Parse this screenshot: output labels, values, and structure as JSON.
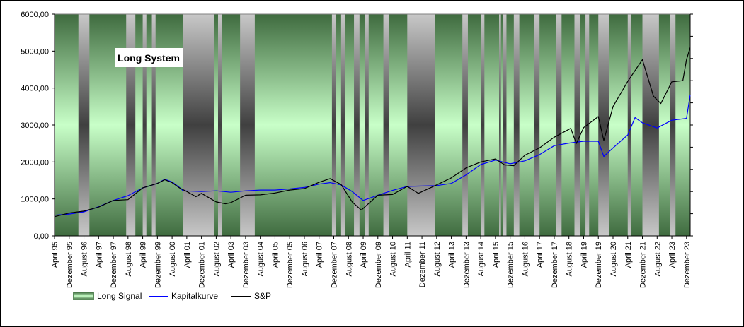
{
  "chart_data": {
    "type": "line",
    "title": "Long System",
    "xlabel": "",
    "ylabel": "",
    "ylim": [
      0,
      6000
    ],
    "y_ticks": [
      "0,00",
      "1000,00",
      "2000,00",
      "3000,00",
      "4000,00",
      "5000,00",
      "6000,00"
    ],
    "x_range": [
      "1995-04",
      "2024-02"
    ],
    "x_ticks": [
      {
        "date": "1995-04",
        "label": "April 95"
      },
      {
        "date": "1995-12",
        "label": "Dezember 95"
      },
      {
        "date": "1996-08",
        "label": "August 96"
      },
      {
        "date": "1997-04",
        "label": "April 97"
      },
      {
        "date": "1997-12",
        "label": "Dezember 97"
      },
      {
        "date": "1998-08",
        "label": "August 98"
      },
      {
        "date": "1999-04",
        "label": "April 99"
      },
      {
        "date": "1999-12",
        "label": "Dezember 99"
      },
      {
        "date": "2000-08",
        "label": "August 00"
      },
      {
        "date": "2001-04",
        "label": "April 01"
      },
      {
        "date": "2001-12",
        "label": "Dezember 01"
      },
      {
        "date": "2002-08",
        "label": "August 02"
      },
      {
        "date": "2003-04",
        "label": "April 03"
      },
      {
        "date": "2003-12",
        "label": "Dezember 03"
      },
      {
        "date": "2004-08",
        "label": "August 04"
      },
      {
        "date": "2005-04",
        "label": "April 05"
      },
      {
        "date": "2005-12",
        "label": "Dezember 05"
      },
      {
        "date": "2006-08",
        "label": "August 06"
      },
      {
        "date": "2007-04",
        "label": "April 07"
      },
      {
        "date": "2007-12",
        "label": "Dezember 07"
      },
      {
        "date": "2008-08",
        "label": "August 08"
      },
      {
        "date": "2009-04",
        "label": "April 09"
      },
      {
        "date": "2009-12",
        "label": "Dezember 09"
      },
      {
        "date": "2010-08",
        "label": "August 10"
      },
      {
        "date": "2011-04",
        "label": "April 11"
      },
      {
        "date": "2011-12",
        "label": "Dezember 11"
      },
      {
        "date": "2012-08",
        "label": "August 12"
      },
      {
        "date": "2013-04",
        "label": "April 13"
      },
      {
        "date": "2013-12",
        "label": "Dezember 13"
      },
      {
        "date": "2014-08",
        "label": "August 14"
      },
      {
        "date": "2015-04",
        "label": "April 15"
      },
      {
        "date": "2015-12",
        "label": "Dezember 15"
      },
      {
        "date": "2016-08",
        "label": "August 16"
      },
      {
        "date": "2017-04",
        "label": "April 17"
      },
      {
        "date": "2017-12",
        "label": "Dezember 17"
      },
      {
        "date": "2018-08",
        "label": "August 18"
      },
      {
        "date": "2019-04",
        "label": "April 19"
      },
      {
        "date": "2019-12",
        "label": "Dezember 19"
      },
      {
        "date": "2020-08",
        "label": "August 20"
      },
      {
        "date": "2021-04",
        "label": "April 21"
      },
      {
        "date": "2021-12",
        "label": "Dezember 21"
      },
      {
        "date": "2022-08",
        "label": "August 22"
      },
      {
        "date": "2023-04",
        "label": "April 23"
      },
      {
        "date": "2023-12",
        "label": "Dezember 23"
      }
    ],
    "legend_position": "bottom-left",
    "grid": false,
    "long_signal_periods": [
      [
        "1995-04",
        "1996-05"
      ],
      [
        "1996-11",
        "1998-07"
      ],
      [
        "1998-12",
        "1999-04"
      ],
      [
        "1999-06",
        "1999-09"
      ],
      [
        "1999-11",
        "2001-02"
      ],
      [
        "2002-07",
        "2002-09"
      ],
      [
        "2002-11",
        "2003-09"
      ],
      [
        "2004-05",
        "2007-11"
      ],
      [
        "2008-01",
        "2008-04"
      ],
      [
        "2008-06",
        "2008-11"
      ],
      [
        "2009-02",
        "2009-05"
      ],
      [
        "2009-07",
        "2010-03"
      ],
      [
        "2010-06",
        "2011-04"
      ],
      [
        "2012-07",
        "2013-10"
      ],
      [
        "2014-01",
        "2014-08"
      ],
      [
        "2014-10",
        "2015-06"
      ],
      [
        "2015-07",
        "2015-08"
      ],
      [
        "2015-10",
        "2016-02"
      ],
      [
        "2016-05",
        "2017-01"
      ],
      [
        "2017-04",
        "2018-01"
      ],
      [
        "2018-04",
        "2018-11"
      ],
      [
        "2019-02",
        "2019-05"
      ],
      [
        "2019-07",
        "2019-12"
      ],
      [
        "2020-06",
        "2021-04"
      ],
      [
        "2021-06",
        "2021-12"
      ],
      [
        "2022-09",
        "2023-03"
      ],
      [
        "2023-06",
        "2024-02"
      ]
    ],
    "series": [
      {
        "name": "Long Signal",
        "color": "#9fd49f",
        "style": "shaded-area"
      },
      {
        "name": "Kapitalkurve",
        "color": "#0000ff",
        "points": [
          [
            "1995-04",
            560
          ],
          [
            "1995-12",
            590
          ],
          [
            "1996-08",
            650
          ],
          [
            "1997-04",
            790
          ],
          [
            "1997-12",
            960
          ],
          [
            "1998-08",
            1090
          ],
          [
            "1999-04",
            1300
          ],
          [
            "1999-12",
            1420
          ],
          [
            "2000-04",
            1530
          ],
          [
            "2000-08",
            1460
          ],
          [
            "2000-12",
            1310
          ],
          [
            "2001-02",
            1220
          ],
          [
            "2001-12",
            1200
          ],
          [
            "2002-08",
            1220
          ],
          [
            "2003-04",
            1180
          ],
          [
            "2003-12",
            1220
          ],
          [
            "2004-08",
            1240
          ],
          [
            "2005-04",
            1240
          ],
          [
            "2005-12",
            1270
          ],
          [
            "2006-08",
            1310
          ],
          [
            "2007-04",
            1400
          ],
          [
            "2007-10",
            1440
          ],
          [
            "2007-12",
            1420
          ],
          [
            "2008-04",
            1380
          ],
          [
            "2008-10",
            1200
          ],
          [
            "2009-04",
            960
          ],
          [
            "2009-12",
            1100
          ],
          [
            "2010-08",
            1230
          ],
          [
            "2011-04",
            1340
          ],
          [
            "2011-12",
            1350
          ],
          [
            "2012-08",
            1360
          ],
          [
            "2013-04",
            1420
          ],
          [
            "2013-12",
            1650
          ],
          [
            "2014-08",
            1930
          ],
          [
            "2015-04",
            2050
          ],
          [
            "2015-12",
            1950
          ],
          [
            "2016-08",
            2030
          ],
          [
            "2017-04",
            2200
          ],
          [
            "2017-12",
            2440
          ],
          [
            "2018-08",
            2510
          ],
          [
            "2019-04",
            2560
          ],
          [
            "2019-12",
            2560
          ],
          [
            "2020-03",
            2150
          ],
          [
            "2020-08",
            2380
          ],
          [
            "2021-04",
            2730
          ],
          [
            "2021-08",
            3200
          ],
          [
            "2021-12",
            3060
          ],
          [
            "2022-08",
            2920
          ],
          [
            "2023-04",
            3130
          ],
          [
            "2023-12",
            3180
          ],
          [
            "2024-02",
            3820
          ]
        ]
      },
      {
        "name": "S&P",
        "color": "#000000",
        "points": [
          [
            "1995-04",
            520
          ],
          [
            "1995-12",
            620
          ],
          [
            "1996-08",
            670
          ],
          [
            "1997-04",
            780
          ],
          [
            "1997-12",
            960
          ],
          [
            "1998-08",
            980
          ],
          [
            "1999-04",
            1300
          ],
          [
            "1999-12",
            1420
          ],
          [
            "2000-04",
            1520
          ],
          [
            "2000-08",
            1440
          ],
          [
            "2000-12",
            1300
          ],
          [
            "2001-04",
            1200
          ],
          [
            "2001-09",
            1060
          ],
          [
            "2001-12",
            1150
          ],
          [
            "2002-08",
            920
          ],
          [
            "2003-01",
            870
          ],
          [
            "2003-04",
            900
          ],
          [
            "2003-12",
            1100
          ],
          [
            "2004-08",
            1110
          ],
          [
            "2005-04",
            1160
          ],
          [
            "2005-12",
            1240
          ],
          [
            "2006-08",
            1280
          ],
          [
            "2007-04",
            1450
          ],
          [
            "2007-10",
            1550
          ],
          [
            "2008-04",
            1390
          ],
          [
            "2008-10",
            920
          ],
          [
            "2009-03",
            700
          ],
          [
            "2009-12",
            1100
          ],
          [
            "2010-08",
            1120
          ],
          [
            "2011-04",
            1340
          ],
          [
            "2011-10",
            1150
          ],
          [
            "2012-08",
            1380
          ],
          [
            "2013-04",
            1570
          ],
          [
            "2013-12",
            1840
          ],
          [
            "2014-08",
            2000
          ],
          [
            "2015-04",
            2080
          ],
          [
            "2015-09",
            1920
          ],
          [
            "2016-02",
            1900
          ],
          [
            "2016-08",
            2180
          ],
          [
            "2017-04",
            2380
          ],
          [
            "2017-12",
            2670
          ],
          [
            "2018-09",
            2910
          ],
          [
            "2018-12",
            2500
          ],
          [
            "2019-04",
            2930
          ],
          [
            "2019-12",
            3230
          ],
          [
            "2020-03",
            2580
          ],
          [
            "2020-08",
            3500
          ],
          [
            "2021-04",
            4180
          ],
          [
            "2021-12",
            4770
          ],
          [
            "2022-06",
            3780
          ],
          [
            "2022-10",
            3580
          ],
          [
            "2023-04",
            4170
          ],
          [
            "2023-10",
            4200
          ],
          [
            "2023-12",
            4770
          ],
          [
            "2024-02",
            5100
          ]
        ]
      }
    ]
  }
}
